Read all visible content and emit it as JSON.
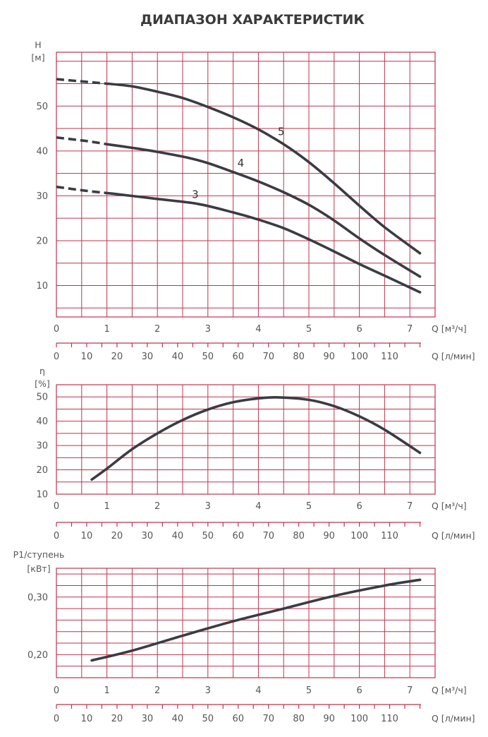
{
  "chart_data": [
    {
      "type": "line",
      "title": "ДИАПАЗОН ХАРАКТЕРИСТИК",
      "ylabel_line1": "H",
      "ylabel_line2": "[м]",
      "yticks": [
        10,
        20,
        30,
        40,
        50
      ],
      "ylim": [
        3,
        62
      ],
      "xticks": [
        0,
        1,
        2,
        3,
        4,
        5,
        6,
        7
      ],
      "xlim": [
        0,
        7.5
      ],
      "xlabel": "Q [м³/ч]",
      "x2ticks": [
        0,
        10,
        20,
        30,
        40,
        50,
        60,
        70,
        80,
        90,
        100,
        110
      ],
      "x2label": "Q [л/мин]",
      "series": [
        {
          "name": "3",
          "dashed": [
            [
              0,
              32
            ],
            [
              0.6,
              31.1
            ],
            [
              1.1,
              30.5
            ]
          ],
          "solid": [
            [
              1.1,
              30.5
            ],
            [
              2,
              29.3
            ],
            [
              2.8,
              28.2
            ],
            [
              3.5,
              26.3
            ],
            [
              4,
              24.7
            ],
            [
              4.5,
              22.8
            ],
            [
              5,
              20.3
            ],
            [
              5.5,
              17.6
            ],
            [
              6,
              14.8
            ],
            [
              6.5,
              12.2
            ],
            [
              7.2,
              8.5
            ]
          ]
        },
        {
          "name": "4",
          "dashed": [
            [
              0,
              43
            ],
            [
              0.6,
              42.2
            ],
            [
              1.0,
              41.5
            ]
          ],
          "solid": [
            [
              1.0,
              41.5
            ],
            [
              1.5,
              40.7
            ],
            [
              2,
              39.8
            ],
            [
              2.6,
              38.5
            ],
            [
              3,
              37.3
            ],
            [
              3.5,
              35.3
            ],
            [
              4,
              33.2
            ],
            [
              4.5,
              30.8
            ],
            [
              5,
              28
            ],
            [
              5.5,
              24.5
            ],
            [
              6,
              20.5
            ],
            [
              6.5,
              16.8
            ],
            [
              7.2,
              12
            ]
          ]
        },
        {
          "name": "5",
          "dashed": [
            [
              0,
              56
            ],
            [
              0.6,
              55.4
            ],
            [
              1.0,
              55
            ]
          ],
          "solid": [
            [
              1.0,
              55
            ],
            [
              1.5,
              54.4
            ],
            [
              2,
              53.2
            ],
            [
              2.5,
              51.8
            ],
            [
              3,
              49.8
            ],
            [
              3.5,
              47.5
            ],
            [
              4,
              44.8
            ],
            [
              4.5,
              41.5
            ],
            [
              5,
              37.5
            ],
            [
              5.5,
              32.8
            ],
            [
              6,
              27.8
            ],
            [
              6.5,
              23
            ],
            [
              7.2,
              17.2
            ]
          ]
        }
      ],
      "curve_labels": [
        {
          "text": "3",
          "x": 2.75,
          "y": 29.5
        },
        {
          "text": "4",
          "x": 3.65,
          "y": 36.5
        },
        {
          "text": "5",
          "x": 4.45,
          "y": 43.5
        }
      ]
    },
    {
      "type": "line",
      "ylabel_line1": "η",
      "ylabel_line2": "[%]",
      "yticks": [
        10,
        20,
        30,
        40,
        50
      ],
      "ylim": [
        10,
        55
      ],
      "xticks": [
        0,
        1,
        2,
        3,
        4,
        5,
        6,
        7
      ],
      "xlim": [
        0,
        7.5
      ],
      "xlabel": "Q [м³/ч]",
      "x2ticks": [
        0,
        10,
        20,
        30,
        40,
        50,
        60,
        70,
        80,
        90,
        100,
        110
      ],
      "x2label": "Q [л/мин]",
      "series": [
        {
          "name": "efficiency",
          "solid": [
            [
              0.7,
              16
            ],
            [
              1,
              20.5
            ],
            [
              1.5,
              28.5
            ],
            [
              2,
              35
            ],
            [
              2.5,
              40.5
            ],
            [
              3,
              44.8
            ],
            [
              3.5,
              47.8
            ],
            [
              4,
              49.4
            ],
            [
              4.4,
              49.8
            ],
            [
              5,
              48.8
            ],
            [
              5.5,
              46.2
            ],
            [
              6,
              42
            ],
            [
              6.5,
              36.5
            ],
            [
              7.2,
              27
            ]
          ]
        }
      ]
    },
    {
      "type": "line",
      "ylabel_line1": "P1/ступень",
      "ylabel_line2": "[кВт]",
      "yticks": [
        "0,20",
        "0,30"
      ],
      "ytick_values": [
        0.2,
        0.3
      ],
      "ylim": [
        0.16,
        0.35
      ],
      "xticks": [
        0,
        1,
        2,
        3,
        4,
        5,
        6,
        7
      ],
      "xlim": [
        0,
        7.5
      ],
      "xlabel": "Q [м³/ч]",
      "x2ticks": [
        0,
        10,
        20,
        30,
        40,
        50,
        60,
        70,
        80,
        90,
        100,
        110
      ],
      "x2label": "Q [л/мин]",
      "series": [
        {
          "name": "power",
          "solid": [
            [
              0.7,
              0.19
            ],
            [
              1.5,
              0.207
            ],
            [
              2.5,
              0.233
            ],
            [
              3.5,
              0.258
            ],
            [
              4.5,
              0.28
            ],
            [
              5.5,
              0.302
            ],
            [
              6.5,
              0.32
            ],
            [
              7.2,
              0.33
            ]
          ]
        }
      ]
    }
  ]
}
